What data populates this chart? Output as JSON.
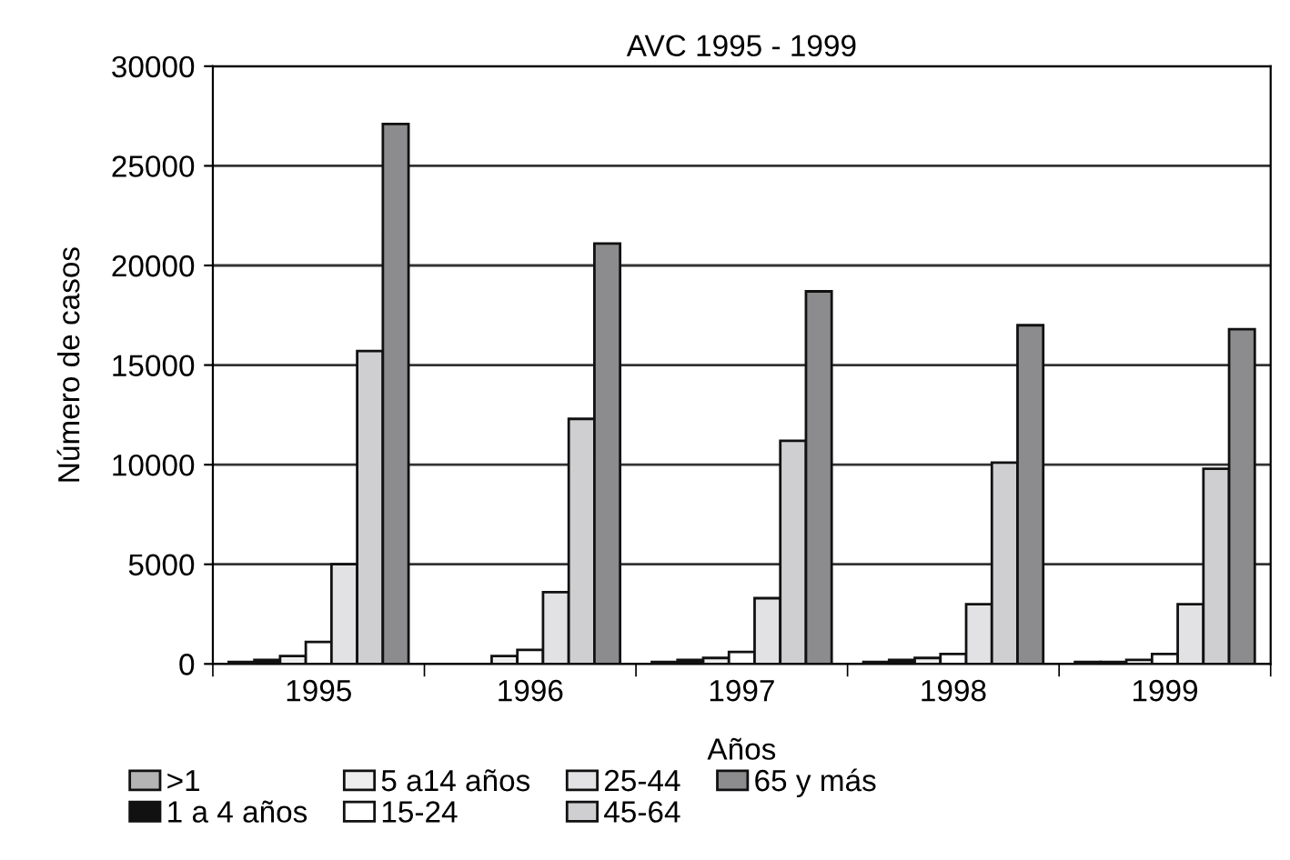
{
  "chart_data": {
    "type": "bar",
    "title": "AVC 1995 - 1999",
    "xlabel": "Años",
    "ylabel": "Número de casos",
    "categories": [
      "1995",
      "1996",
      "1997",
      "1998",
      "1999"
    ],
    "series": [
      {
        "name": ">1",
        "color": "#b4b4b4",
        "values": [
          100,
          null,
          100,
          100,
          100
        ]
      },
      {
        "name": "1 a 4 años",
        "color": "#111111",
        "values": [
          200,
          null,
          200,
          200,
          100
        ]
      },
      {
        "name": "5 a14 años",
        "color": "#eeeeee",
        "values": [
          400,
          400,
          300,
          300,
          200
        ]
      },
      {
        "name": "15-24",
        "color": "#ffffff",
        "values": [
          1100,
          700,
          600,
          500,
          500
        ]
      },
      {
        "name": "25-44",
        "color": "#e2e2e4",
        "values": [
          5000,
          3600,
          3300,
          3000,
          3000
        ]
      },
      {
        "name": "45-64",
        "color": "#cfcfd1",
        "values": [
          15700,
          12300,
          11200,
          10100,
          9800
        ]
      },
      {
        "name": "65 y más",
        "color": "#8c8c8e",
        "values": [
          27100,
          21100,
          18700,
          17000,
          16800
        ]
      }
    ],
    "ylim": [
      0,
      30000
    ],
    "yticks": [
      0,
      5000,
      10000,
      15000,
      20000,
      25000,
      30000
    ],
    "grid": "y",
    "legend": "bottom"
  }
}
